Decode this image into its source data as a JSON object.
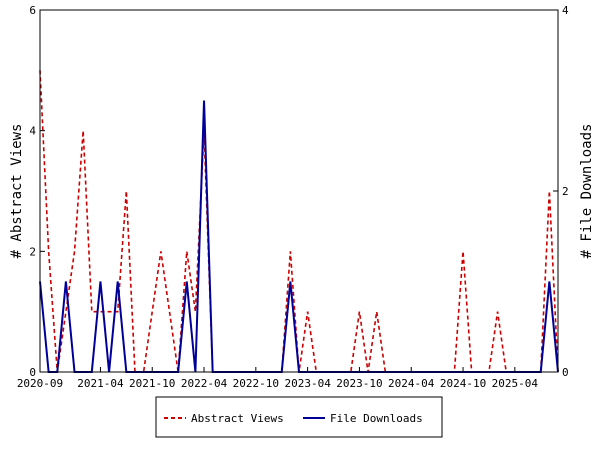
{
  "chart_data": {
    "type": "line",
    "x": [
      "2020-09",
      "2020-10",
      "2020-11",
      "2020-12",
      "2021-01",
      "2021-02",
      "2021-03",
      "2021-04",
      "2021-05",
      "2021-06",
      "2021-07",
      "2021-08",
      "2021-09",
      "2021-10",
      "2021-11",
      "2021-12",
      "2022-01",
      "2022-02",
      "2022-03",
      "2022-04",
      "2022-05",
      "2022-06",
      "2022-07",
      "2022-08",
      "2022-09",
      "2022-10",
      "2022-11",
      "2022-12",
      "2023-01",
      "2023-02",
      "2023-03",
      "2023-04",
      "2023-05",
      "2023-06",
      "2023-07",
      "2023-08",
      "2023-09",
      "2023-10",
      "2023-11",
      "2023-12",
      "2024-01",
      "2024-02",
      "2024-03",
      "2024-04",
      "2024-05",
      "2024-06",
      "2024-07",
      "2024-08",
      "2024-09",
      "2024-10",
      "2024-11",
      "2024-12",
      "2025-01",
      "2025-02",
      "2025-03",
      "2025-04",
      "2025-05",
      "2025-06",
      "2025-07",
      "2025-08",
      "2025-09"
    ],
    "series": [
      {
        "name": "Abstract Views",
        "axis": "left",
        "color": "#cc0000",
        "style": "dashed",
        "values": [
          5,
          2,
          0,
          1,
          2,
          4,
          1,
          1,
          1,
          1,
          3,
          0,
          0,
          1,
          2,
          1,
          0,
          2,
          1,
          4,
          0,
          0,
          0,
          0,
          0,
          0,
          0,
          0,
          0,
          2,
          0,
          1,
          0,
          0,
          0,
          0,
          0,
          1,
          0,
          1,
          0,
          0,
          0,
          0,
          0,
          0,
          0,
          0,
          0,
          2,
          0,
          0,
          0,
          1,
          0,
          0,
          0,
          0,
          0,
          3,
          0
        ]
      },
      {
        "name": "File Downloads",
        "axis": "right",
        "color": "#000099",
        "style": "solid",
        "values": [
          1,
          0,
          0,
          1,
          0,
          0,
          0,
          1,
          0,
          1,
          0,
          0,
          0,
          0,
          0,
          0,
          0,
          1,
          0,
          3,
          0,
          0,
          0,
          0,
          0,
          0,
          0,
          0,
          0,
          1,
          0,
          0,
          0,
          0,
          0,
          0,
          0,
          0,
          0,
          0,
          0,
          0,
          0,
          0,
          0,
          0,
          0,
          0,
          0,
          0,
          0,
          0,
          0,
          0,
          0,
          0,
          0,
          0,
          0,
          1,
          0
        ]
      }
    ],
    "x_tick_labels": [
      "2020-09",
      "2021-04",
      "2021-10",
      "2022-04",
      "2022-10",
      "2023-04",
      "2023-10",
      "2024-04",
      "2024-10",
      "2025-04"
    ],
    "x_tick_months": [
      "2020-09",
      "2021-04",
      "2021-10",
      "2022-04",
      "2022-10",
      "2023-04",
      "2023-10",
      "2024-04",
      "2024-10",
      "2025-04"
    ],
    "y_left": {
      "label": "# Abstract Views",
      "range": [
        0,
        6
      ],
      "ticks": [
        "0",
        "2",
        "4",
        "6"
      ]
    },
    "y_right": {
      "label": "# File Downloads",
      "range": [
        0,
        4
      ],
      "ticks": [
        "0",
        "2",
        "4"
      ]
    },
    "legend": {
      "placement": "bottom",
      "entries": [
        "Abstract Views",
        "File Downloads"
      ]
    }
  }
}
